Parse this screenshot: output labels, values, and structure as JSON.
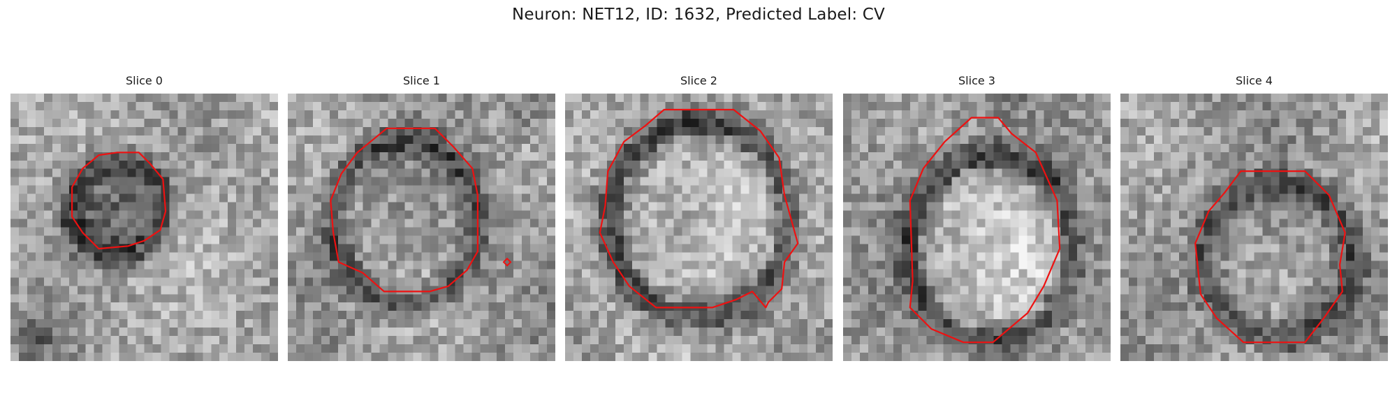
{
  "figure": {
    "title": "Neuron: NET12, ID: 1632, Predicted Label: CV"
  },
  "colors": {
    "contour": "#ee1111",
    "background": "#ffffff"
  },
  "panels": [
    {
      "title": "Slice 0",
      "image": {
        "kind": "grayscale-microscopy-patch",
        "content": "dark circular vesicle on mottled gray field, dark patch lower-left"
      },
      "contour": {
        "shape": "octagonal-outline",
        "size": "small"
      }
    },
    {
      "title": "Slice 1",
      "image": {
        "kind": "grayscale-microscopy-patch",
        "content": "round vesicle with dark rim and textured interior"
      },
      "contour": {
        "shape": "octagonal-outline",
        "size": "large",
        "extra_marker": "small diamond to the right"
      }
    },
    {
      "title": "Slice 2",
      "image": {
        "kind": "grayscale-microscopy-patch",
        "content": "bright vesicle with thick dark upper rim"
      },
      "contour": {
        "shape": "octagonal-outline",
        "size": "large"
      }
    },
    {
      "title": "Slice 3",
      "image": {
        "kind": "grayscale-microscopy-patch",
        "content": "bright oval vesicle with dark arc above"
      },
      "contour": {
        "shape": "octagonal-outline",
        "size": "tall"
      }
    },
    {
      "title": "Slice 4",
      "image": {
        "kind": "grayscale-microscopy-patch",
        "content": "vesicle with dark ring on noisy gray field"
      },
      "contour": {
        "shape": "octagonal-outline",
        "size": "medium"
      }
    }
  ]
}
